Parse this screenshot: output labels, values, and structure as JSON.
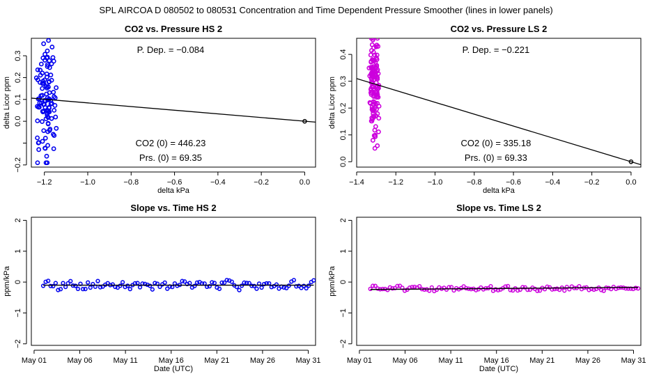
{
  "figure": {
    "title": "SPL   AIRCOA D   080502 to 080531   Concentration and Time Dependent Pressure Smoother (lines in lower panels)"
  },
  "colors": {
    "blue": "#0000ee",
    "magenta": "#cc00dd",
    "line": "#000000"
  },
  "chart_data": [
    {
      "id": "hs-pressure",
      "type": "scatter",
      "title": "CO2 vs. Pressure HS 2",
      "xlabel": "delta kPa",
      "ylabel": "delta Licor ppm",
      "xlim": [
        -1.26,
        0.05
      ],
      "ylim": [
        -0.21,
        0.38
      ],
      "xticks": [
        -1.2,
        -1.0,
        -0.8,
        -0.6,
        -0.4,
        -0.2,
        0.0
      ],
      "xtick_labels": [
        "−1.2",
        "−1.0",
        "−0.8",
        "−0.6",
        "−0.4",
        "−0.2",
        "0.0"
      ],
      "yticks": [
        -0.2,
        -0.1,
        0.0,
        0.1,
        0.2,
        0.3
      ],
      "ytick_labels": [
        "−0.2",
        "",
        "0.0",
        "0.1",
        "0.2",
        "0.3"
      ],
      "color": "blue",
      "cluster": {
        "x_center": -1.19,
        "x_spread": 0.05,
        "y_min": -0.19,
        "y_max": 0.37,
        "y_center": 0.1,
        "count": 110
      },
      "origin_point": [
        0.0,
        0.0
      ],
      "fit_line": {
        "x": [
          -1.26,
          0.05
        ],
        "y": [
          0.106,
          -0.004
        ]
      },
      "annotations": {
        "dep": "P. Dep. =  −0.084",
        "co2": "CO2 (0) =  446.23",
        "prs": "Prs. (0) =  69.35"
      }
    },
    {
      "id": "ls-pressure",
      "type": "scatter",
      "title": "CO2 vs. Pressure LS 2",
      "xlabel": "delta kPa",
      "ylabel": "delta Licor ppm",
      "xlim": [
        -1.4,
        0.05
      ],
      "ylim": [
        -0.02,
        0.46
      ],
      "xticks": [
        -1.4,
        -1.2,
        -1.0,
        -0.8,
        -0.6,
        -0.4,
        -0.2,
        0.0
      ],
      "xtick_labels": [
        "−1.4",
        "−1.2",
        "−1.0",
        "−0.8",
        "−0.6",
        "−0.4",
        "−0.2",
        "0.0"
      ],
      "yticks": [
        0.0,
        0.1,
        0.2,
        0.3,
        0.4
      ],
      "ytick_labels": [
        "0.0",
        "0.1",
        "0.2",
        "0.3",
        "0.4"
      ],
      "color": "magenta",
      "cluster": {
        "x_center": -1.31,
        "x_spread": 0.03,
        "y_min": 0.05,
        "y_max": 0.46,
        "y_center": 0.28,
        "count": 130
      },
      "origin_point": [
        0.0,
        0.0
      ],
      "fit_line": {
        "x": [
          -1.4,
          0.05
        ],
        "y": [
          0.31,
          -0.011
        ]
      },
      "annotations": {
        "dep": "P. Dep. =  −0.221",
        "co2": "CO2 (0) =  335.18",
        "prs": "Prs. (0) =  69.33"
      }
    },
    {
      "id": "hs-slope",
      "type": "line",
      "title": "Slope vs. Time HS 2",
      "xlabel": "Date (UTC)",
      "ylabel": "ppm/kPa",
      "xlim": [
        0.7,
        31.8
      ],
      "ylim": [
        -2.05,
        2.1
      ],
      "xticks": [
        1,
        6,
        11,
        16,
        21,
        26,
        31
      ],
      "xtick_labels": [
        "May 01",
        "May 06",
        "May 11",
        "May 16",
        "May 21",
        "May 26",
        "May 31"
      ],
      "yticks": [
        -2,
        -1,
        0,
        1,
        2
      ],
      "ytick_labels": [
        "−2",
        "−1",
        "0",
        "1",
        "2"
      ],
      "color": "blue",
      "day_range": [
        2.0,
        31.6
      ],
      "count": 110,
      "base": -0.1,
      "noise": 0.12,
      "smoother": [
        -0.1,
        -0.1
      ]
    },
    {
      "id": "ls-slope",
      "type": "line",
      "title": "Slope vs. Time LS 2",
      "xlabel": "Date (UTC)",
      "ylabel": "ppm/kPa",
      "xlim": [
        0.7,
        31.8
      ],
      "ylim": [
        -2.05,
        2.1
      ],
      "xticks": [
        1,
        6,
        11,
        16,
        21,
        26,
        31
      ],
      "xtick_labels": [
        "May 01",
        "May 06",
        "May 11",
        "May 16",
        "May 21",
        "May 26",
        "May 31"
      ],
      "yticks": [
        -2,
        -1,
        0,
        1,
        2
      ],
      "ytick_labels": [
        "−2",
        "−1",
        "0",
        "1",
        "2"
      ],
      "color": "magenta",
      "day_range": [
        2.2,
        31.5
      ],
      "count": 110,
      "base": -0.21,
      "noise": 0.07,
      "smoother": [
        -0.24,
        -0.17
      ]
    }
  ]
}
